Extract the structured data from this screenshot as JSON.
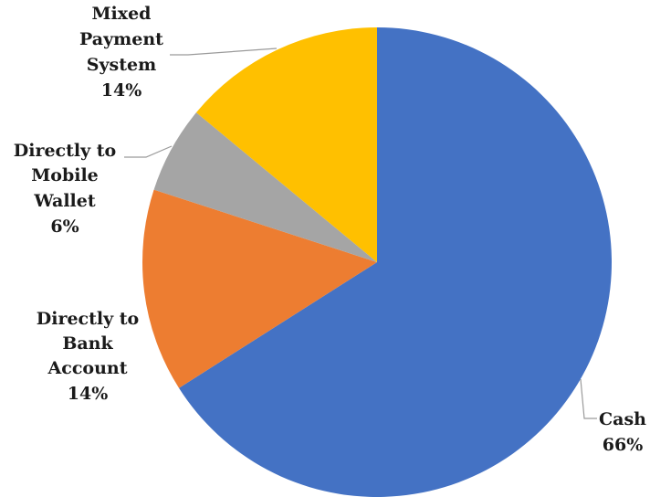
{
  "chart_data": {
    "type": "pie",
    "title": "",
    "slices": [
      {
        "label_lines": [
          "Cash"
        ],
        "percent_label": "66%",
        "value": 66,
        "color": "#4472C4"
      },
      {
        "label_lines": [
          "Directly to",
          "Bank",
          "Account"
        ],
        "percent_label": "14%",
        "value": 14,
        "color": "#ED7D31"
      },
      {
        "label_lines": [
          "Directly to",
          "Mobile",
          "Wallet"
        ],
        "percent_label": "6%",
        "value": 6,
        "color": "#A5A5A5"
      },
      {
        "label_lines": [
          "Mixed",
          "Payment",
          "System"
        ],
        "percent_label": "14%",
        "value": 14,
        "color": "#FFC000"
      }
    ],
    "legend": "none",
    "start_angle": "12 o'clock",
    "direction": "clockwise"
  }
}
